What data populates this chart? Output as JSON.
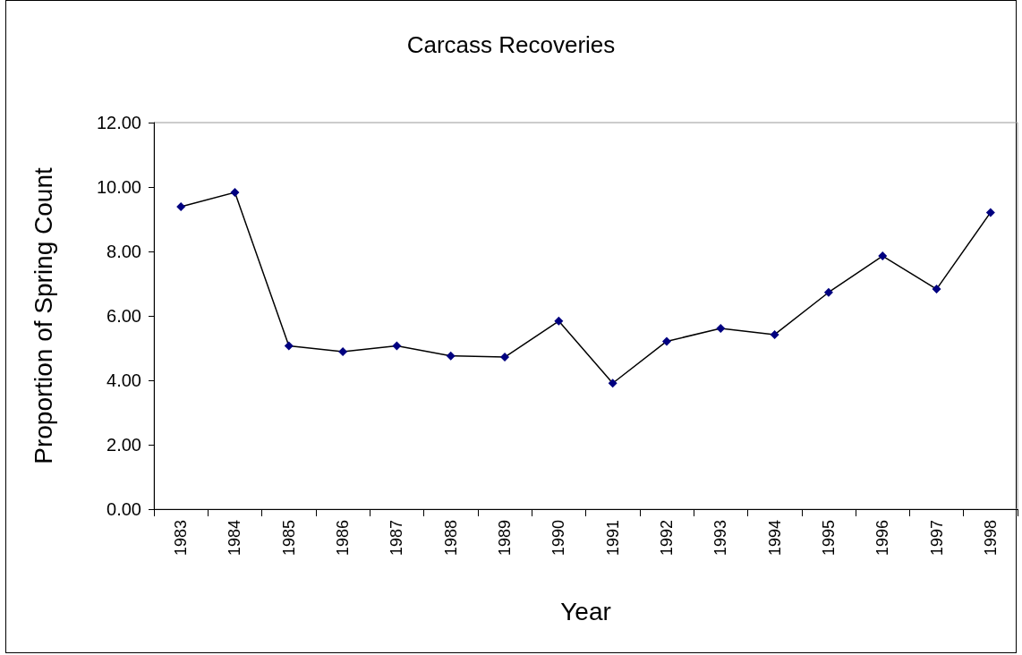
{
  "chart_data": {
    "type": "line",
    "title": "Carcass Recoveries",
    "xlabel": "Year",
    "ylabel": "Proportion of Spring Count",
    "categories": [
      "1983",
      "1984",
      "1985",
      "1986",
      "1987",
      "1988",
      "1989",
      "1990",
      "1991",
      "1992",
      "1993",
      "1994",
      "1995",
      "1996",
      "1997",
      "1998"
    ],
    "series": [
      {
        "color": "#000080",
        "values": [
          9.39,
          9.83,
          5.07,
          4.89,
          5.07,
          4.76,
          4.72,
          5.84,
          3.91,
          5.21,
          5.61,
          5.42,
          6.73,
          7.86,
          6.83,
          9.21
        ]
      }
    ],
    "ylim": [
      0,
      12
    ],
    "yticks": [
      {
        "value": 0,
        "label": "0.00"
      },
      {
        "value": 2,
        "label": "2.00"
      },
      {
        "value": 4,
        "label": "4.00"
      },
      {
        "value": 6,
        "label": "6.00"
      },
      {
        "value": 8,
        "label": "8.00"
      },
      {
        "value": 10,
        "label": "10.00"
      },
      {
        "value": 12,
        "label": "12.00"
      }
    ],
    "grid": false,
    "marker": "diamond",
    "line_style": "solid"
  }
}
